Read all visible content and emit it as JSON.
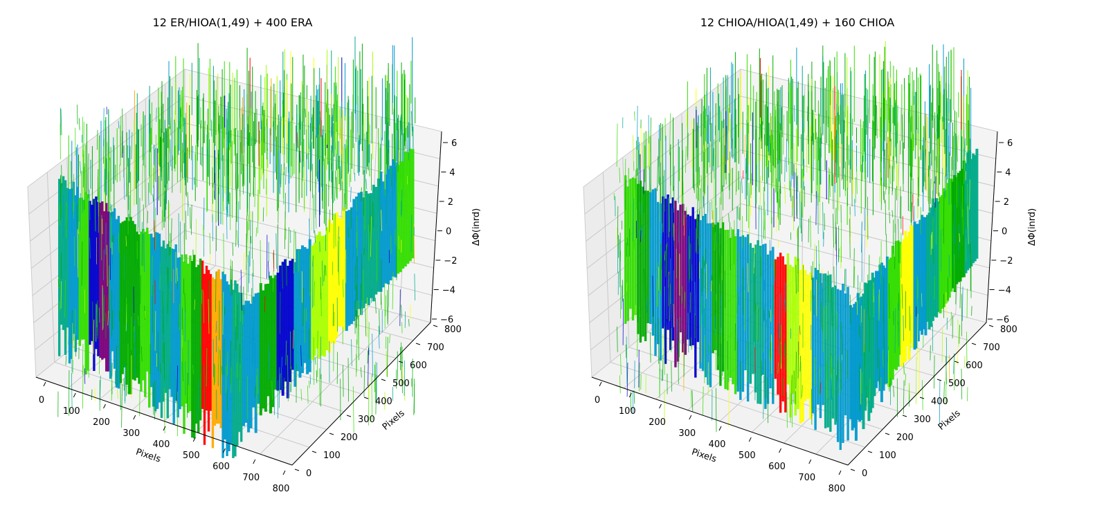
{
  "chart_data": [
    {
      "type": "surface3d",
      "title": "12 ER/HIOA(1,49) + 400 ERA",
      "xlabel": "Pixels",
      "ylabel": "Pixels",
      "zlabel": "ΔΦ(inrd)",
      "xticks": [
        "0",
        "100",
        "200",
        "300",
        "400",
        "500",
        "600",
        "700",
        "800"
      ],
      "yticks": [
        "0",
        "100",
        "200",
        "300",
        "400",
        "500",
        "600",
        "700",
        "800"
      ],
      "zticks": [
        "−6",
        "−4",
        "−2",
        "0",
        "2",
        "4",
        "6"
      ],
      "xlim": [
        0,
        800
      ],
      "ylim": [
        0,
        800
      ],
      "zlim": [
        -6,
        6
      ],
      "grid": true,
      "colormap": [
        "#7a007a",
        "#0000cc",
        "#0099cc",
        "#00aa88",
        "#00aa00",
        "#33dd00",
        "#aaff00",
        "#ffff00",
        "#ffaa00",
        "#ff0000"
      ]
    },
    {
      "type": "surface3d",
      "title": "12 CHIOA/HIOA(1,49) + 160 CHIOA",
      "xlabel": "Pixels",
      "ylabel": "Pixels",
      "zlabel": "ΔΦ(inrd)",
      "xticks": [
        "0",
        "100",
        "200",
        "300",
        "400",
        "500",
        "600",
        "700",
        "800"
      ],
      "yticks": [
        "0",
        "100",
        "200",
        "300",
        "400",
        "500",
        "600",
        "700",
        "800"
      ],
      "zticks": [
        "−6",
        "−4",
        "−2",
        "0",
        "2",
        "4",
        "6"
      ],
      "xlim": [
        0,
        800
      ],
      "ylim": [
        0,
        800
      ],
      "zlim": [
        -6,
        6
      ],
      "grid": true,
      "colormap": [
        "#7a007a",
        "#0000cc",
        "#0099cc",
        "#00aa88",
        "#00aa00",
        "#33dd00",
        "#aaff00",
        "#ffff00",
        "#ffaa00",
        "#ff0000"
      ]
    }
  ]
}
